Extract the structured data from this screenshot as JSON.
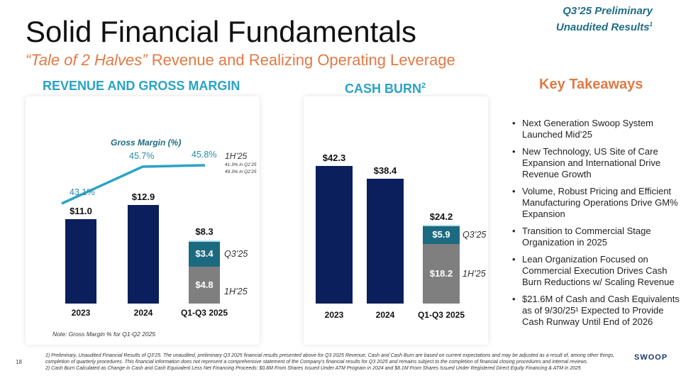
{
  "header": {
    "title": "Solid Financial Fundamentals",
    "subtitle_italic": "“Tale of 2 Halves”",
    "subtitle_rest": " Revenue and Realizing Operating Leverage",
    "prelim_line1": "Q3’25 Preliminary",
    "prelim_line2": "Unaudited Results",
    "prelim_sup": "1"
  },
  "sections": {
    "revenue": "REVENUE AND GROSS MARGIN",
    "cash": "CASH BURN",
    "cash_sup": "2",
    "takeaways": "Key Takeaways"
  },
  "colors": {
    "navy": "#0b1f5c",
    "teal": "#1c6a80",
    "gray": "#7f7f7f",
    "line": "#2aa3c6",
    "orange": "#e07a45"
  },
  "chart_data": [
    {
      "type": "bar",
      "title": "REVENUE AND GROSS MARGIN",
      "categories": [
        "2023",
        "2024",
        "Q1-Q3 2025"
      ],
      "totals": [
        "$11.0",
        "$12.9",
        "$8.3"
      ],
      "values": [
        11.0,
        12.9,
        8.3
      ],
      "stack": {
        "category": "Q1-Q3 2025",
        "segments": [
          {
            "name": "1H’25",
            "value": 4.8,
            "label": "$4.8"
          },
          {
            "name": "Q3’25",
            "value": 3.4,
            "label": "$3.4"
          }
        ]
      },
      "gross_margin": {
        "title": "Gross Margin (%)",
        "values": [
          43.1,
          45.7,
          45.8
        ],
        "labels": [
          "43.1%",
          "45.7%",
          "45.8%"
        ],
        "annotation": "1H’25",
        "detail1": "41.3%  in Q1’25",
        "detail2": "49.3% in Q2’25"
      },
      "note": "Note: Gross Margin % for Q1-Q2 2025"
    },
    {
      "type": "bar",
      "title": "CASH BURN",
      "categories": [
        "2023",
        "2024",
        "Q1-Q3 2025"
      ],
      "totals": [
        "$42.3",
        "$38.4",
        "$24.2"
      ],
      "values": [
        42.3,
        38.4,
        24.2
      ],
      "stack": {
        "category": "Q1-Q3 2025",
        "segments": [
          {
            "name": "1H’25",
            "value": 18.2,
            "label": "$18.2"
          },
          {
            "name": "Q3’25",
            "value": 5.9,
            "label": "$5.9"
          }
        ]
      }
    }
  ],
  "takeaways": [
    "Next Generation Swoop System Launched Mid’25",
    "New Technology, US Site of Care Expansion and International Drive Revenue Growth",
    "Volume, Robust Pricing and Efficient Manufacturing Operations Drive GM% Expansion",
    "Transition to Commercial Stage Organization in 2025",
    "Lean Organization Focused on Commercial Execution Drives Cash Burn Reductions w/ Scaling Revenue",
    "$21.6M of Cash and Cash Equivalents as of 9/30/25¹ Expected to Provide  Cash Runway Until End of 2026"
  ],
  "footer": {
    "page": "18",
    "note1": "1) Preliminary, Unaudited Financial Results of Q3’25.  The unaudited, preliminary Q3 2025 financial results presented above for Q3 2025 Revenue, Cash and Cash Burn are based on current expectations and may be adjusted as a result of, among other things, completion of quarterly procedures. This financial information does not represent a comprehensive statement of the Company’s financial results for Q3 2025 and remains subject to the completion of financial closing procedures and internal reviews.",
    "note2": "2) Cash Burn Calculated as Change in Cash and Cash Equivalent Less Net Financing Proceeds: $0.8M From Shares Issued Under ATM Program in 2024 and $8.1M From Shares Issued Under Registered Direct Equity Financing & ATM in 2025",
    "logo": "SWOOP"
  }
}
